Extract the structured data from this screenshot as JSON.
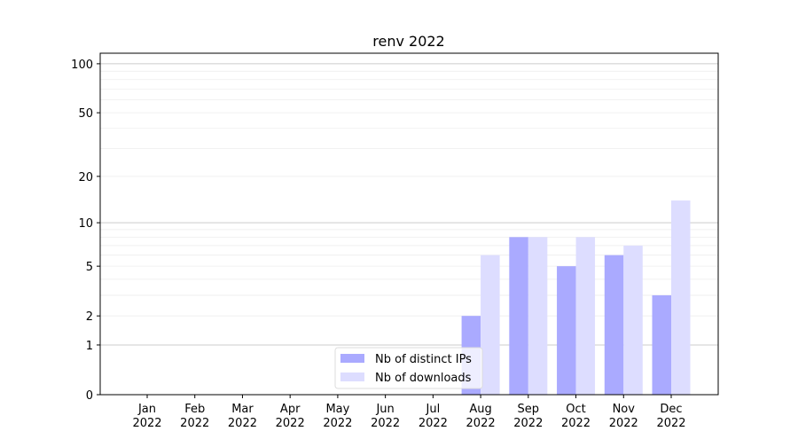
{
  "chart_data": {
    "type": "bar",
    "title": "renv 2022",
    "xlabel": "",
    "ylabel": "",
    "y_scale": "log(1+y)",
    "ylim": [
      0,
      116
    ],
    "y_ticks": [
      0,
      1,
      2,
      5,
      10,
      20,
      50,
      100
    ],
    "grid": "horizontal, major and minor",
    "legend_position": "bottom-center",
    "categories": [
      "Jan\n2022",
      "Feb\n2022",
      "Mar\n2022",
      "Apr\n2022",
      "May\n2022",
      "Jun\n2022",
      "Jul\n2022",
      "Aug\n2022",
      "Sep\n2022",
      "Oct\n2022",
      "Nov\n2022",
      "Dec\n2022"
    ],
    "series": [
      {
        "name": "Nb of distinct IPs",
        "color": "#aaaaff",
        "values": [
          0,
          0,
          0,
          0,
          0,
          0,
          0,
          2,
          8,
          5,
          6,
          3
        ]
      },
      {
        "name": "Nb of downloads",
        "color": "#ddddff",
        "values": [
          0,
          0,
          0,
          0,
          0,
          0,
          0,
          6,
          8,
          8,
          7,
          14
        ]
      }
    ]
  }
}
